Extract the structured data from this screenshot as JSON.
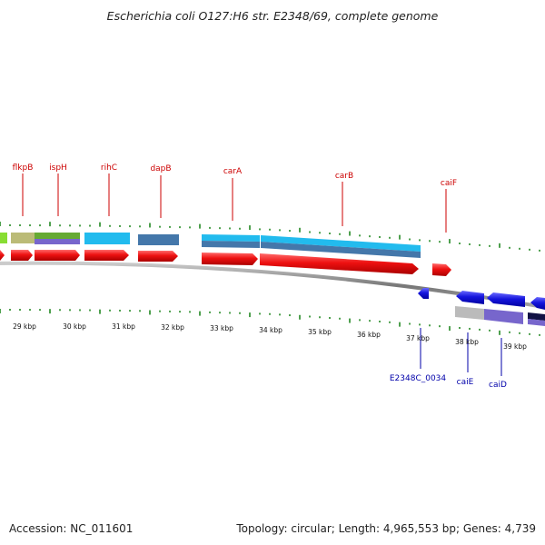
{
  "title": "Escherichia coli O127:H6 str. E2348/69, complete genome",
  "accession": "Accession: NC_011601",
  "genome_info": "Topology: circular; Length: 4,965,553 bp; Genes: 4,739",
  "colors": {
    "forward_gene": "#ee1111",
    "reverse_gene": "#1515dd",
    "light_blue_feature": "#22bbee",
    "steel_blue_feature": "#4477aa",
    "olive_feature": "#bbbb77",
    "green_feature": "#66aa33",
    "purple_feature": "#7766cc",
    "gray_feature": "#bbbbbb",
    "navy_feature": "#111144",
    "ticks": "#228822",
    "backbone": "#888888",
    "forward_label": "#cc0000",
    "reverse_label": "#0000aa"
  },
  "gene_labels_forward": [
    "flkpB",
    "ispH",
    "rihC",
    "dapB",
    "carA",
    "carB",
    "caiF"
  ],
  "gene_labels_reverse": [
    "E2348C_0034",
    "caiE",
    "caiD"
  ],
  "kbp_labels": [
    "29 kbp",
    "30 kbp",
    "31 kbp",
    "32 kbp",
    "33 kbp",
    "34 kbp",
    "35 kbp",
    "36 kbp",
    "37 kbp",
    "38 kbp",
    "39 kbp"
  ]
}
